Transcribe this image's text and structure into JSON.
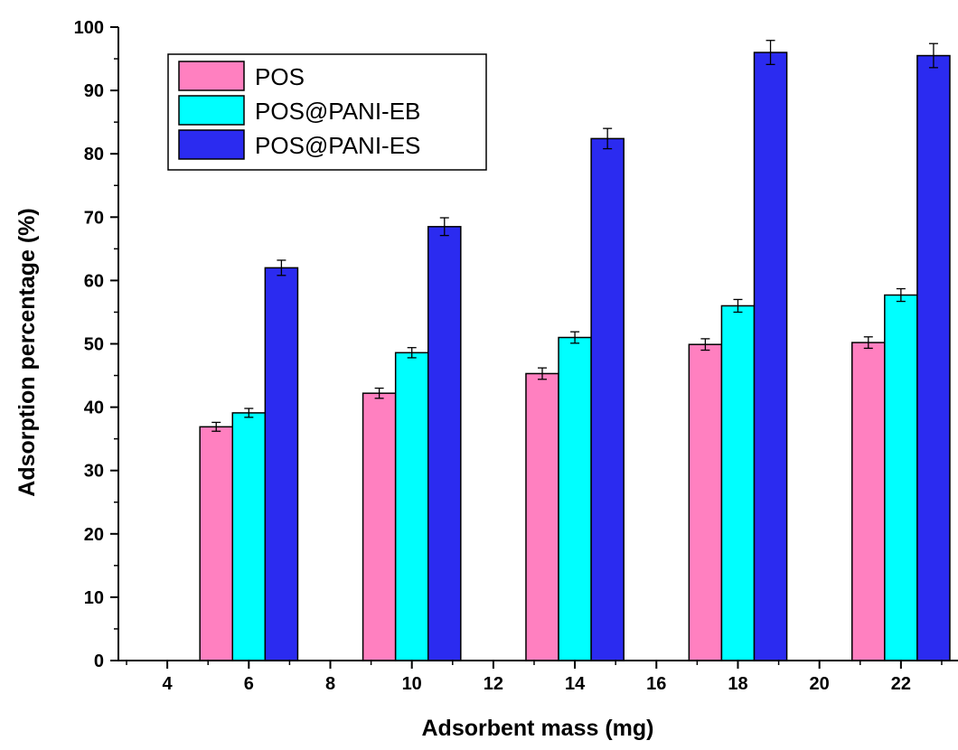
{
  "chart_data": {
    "type": "bar",
    "title": "",
    "xlabel": "Adsorbent mass (mg)",
    "ylabel": "Adsorption percentage (%)",
    "ylim": [
      0,
      100
    ],
    "xlim": [
      2.8,
      23.4
    ],
    "x_ticks": [
      4,
      6,
      8,
      10,
      12,
      14,
      16,
      18,
      20,
      22
    ],
    "y_ticks": [
      0,
      10,
      20,
      30,
      40,
      50,
      60,
      70,
      80,
      90,
      100
    ],
    "categories": [
      "6",
      "10",
      "14",
      "18",
      "22"
    ],
    "category_x": [
      6,
      10,
      14,
      18,
      22
    ],
    "bar_width_units": 0.8,
    "grid": false,
    "legend_position": "top-left",
    "series": [
      {
        "name": "POS",
        "color": "#ff80c0",
        "values": [
          36.9,
          42.2,
          45.3,
          49.9,
          50.2
        ],
        "errors": [
          0.7,
          0.8,
          0.9,
          0.9,
          0.9
        ]
      },
      {
        "name": "POS@PANI-EB",
        "color": "#00ffff",
        "values": [
          39.1,
          48.6,
          51.0,
          56.0,
          57.7
        ],
        "errors": [
          0.7,
          0.8,
          0.9,
          1.0,
          1.0
        ]
      },
      {
        "name": "POS@PANI-ES",
        "color": "#2b2bf0",
        "values": [
          62.0,
          68.5,
          82.4,
          96.0,
          95.5
        ],
        "errors": [
          1.2,
          1.4,
          1.6,
          1.9,
          1.9
        ]
      }
    ]
  }
}
